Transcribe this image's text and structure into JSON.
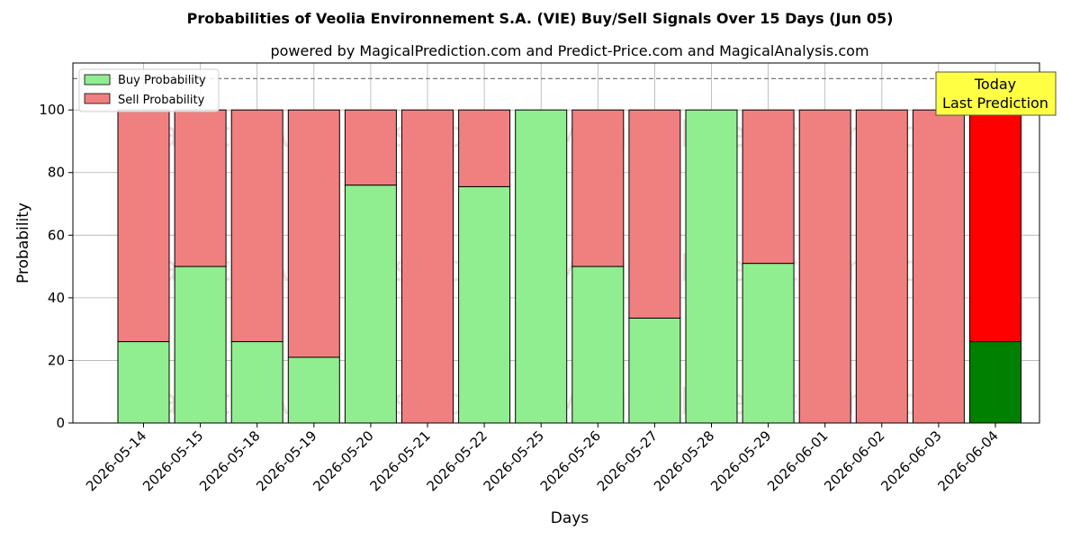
{
  "chart_data": {
    "type": "bar",
    "title": "Probabilities of Veolia Environnement S.A. (VIE) Buy/Sell Signals Over 15 Days (Jun 05)",
    "subtitle": "powered by MagicalPrediction.com and Predict-Price.com and MagicalAnalysis.com",
    "xlabel": "Days",
    "ylabel": "Probability",
    "ylim": [
      0,
      115
    ],
    "yticks": [
      0,
      20,
      40,
      60,
      80,
      100
    ],
    "grid": true,
    "legend_position": "top-left",
    "stacked": true,
    "categories": [
      "2026-05-14",
      "2026-05-15",
      "2026-05-18",
      "2026-05-19",
      "2026-05-20",
      "2026-05-21",
      "2026-05-22",
      "2026-05-25",
      "2026-05-26",
      "2026-05-27",
      "2026-05-28",
      "2026-05-29",
      "2026-06-01",
      "2026-06-02",
      "2026-06-03",
      "2026-06-04"
    ],
    "series": [
      {
        "name": "Buy Probability",
        "color": "#90EE90",
        "values": [
          26,
          50,
          26,
          21,
          76,
          0,
          75.5,
          100,
          50,
          33.5,
          100,
          51,
          0,
          0,
          0,
          26
        ]
      },
      {
        "name": "Sell Probability",
        "color": "#F08080",
        "values": [
          74,
          50,
          74,
          79,
          24,
          100,
          24.5,
          0,
          50,
          66.5,
          0,
          49,
          100,
          100,
          100,
          74
        ]
      }
    ],
    "highlight": {
      "index": 15,
      "buy_color": "#008000",
      "sell_color": "#FF0000"
    },
    "reference_line": {
      "y": 110,
      "style": "dashed"
    },
    "annotation": {
      "lines": [
        "Today",
        "Last Prediction"
      ],
      "background": "#FFFF44"
    },
    "watermarks": [
      "MagicalAnalysis.com",
      "MagicalPrediction.com"
    ]
  }
}
